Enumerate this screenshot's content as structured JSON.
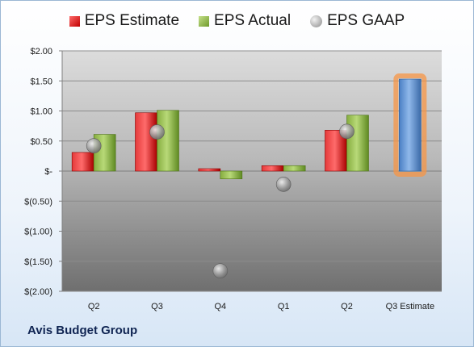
{
  "company": "Avis Budget Group",
  "legend": {
    "estimate": "EPS Estimate",
    "actual": "EPS Actual",
    "gaap": "EPS GAAP"
  },
  "colors": {
    "estimate": "#c00000",
    "actual": "#77a033",
    "gaap": "#8a8a8a",
    "forecast": "#4f81bd",
    "forecast_glow": "#f79646"
  },
  "chart_data": {
    "type": "bar",
    "categories": [
      "Q2",
      "Q3",
      "Q4",
      "Q1",
      "Q2",
      "Q3 Estimate"
    ],
    "series": [
      {
        "name": "EPS Estimate",
        "values": [
          0.31,
          0.97,
          0.04,
          0.09,
          0.68,
          1.53
        ]
      },
      {
        "name": "EPS Actual",
        "values": [
          0.61,
          1.01,
          -0.13,
          0.09,
          0.93,
          null
        ]
      },
      {
        "name": "EPS GAAP",
        "values": [
          0.42,
          0.65,
          -1.66,
          -0.22,
          0.66,
          null
        ]
      }
    ],
    "ylim": [
      -2.0,
      2.0
    ],
    "yticks": [
      2.0,
      1.5,
      1.0,
      0.5,
      0.0,
      -0.5,
      -1.0,
      -1.5,
      -2.0
    ],
    "ytick_labels": [
      "$2.00",
      "$1.50",
      "$1.00",
      "$0.50",
      "$-",
      "$(0.50)",
      "$(1.00)",
      "$(1.50)",
      "$(2.00)"
    ],
    "grid": true,
    "legend_position": "top"
  }
}
